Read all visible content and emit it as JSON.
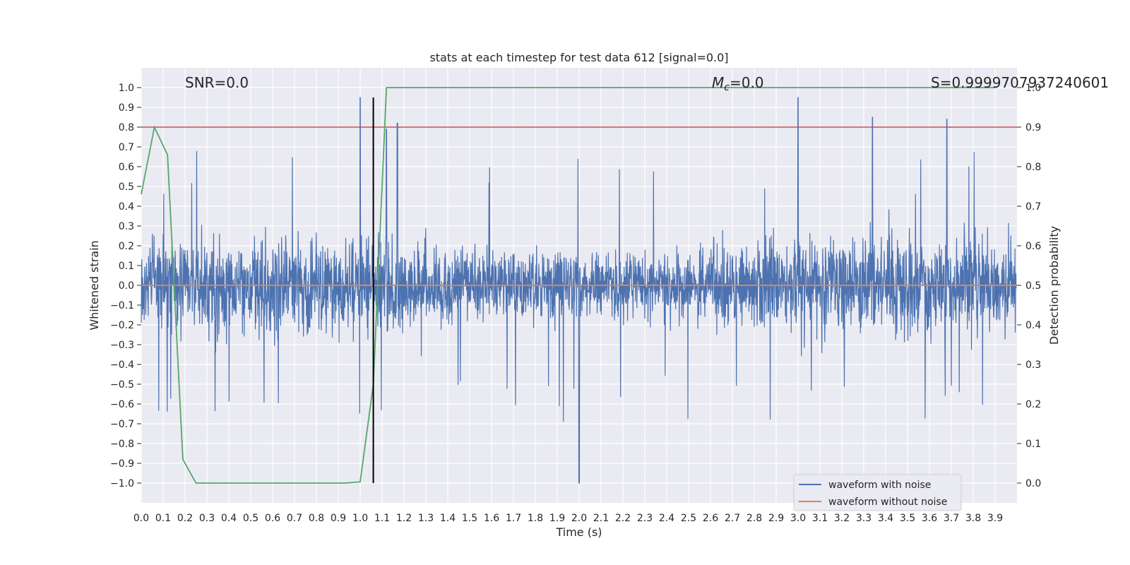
{
  "chart_data": {
    "type": "line",
    "title": "stats at each timestep for test data 612 [signal=0.0]",
    "xlabel": "Time (s)",
    "ylabel": "Whitened strain",
    "y2label": "Detection probability",
    "xlim": [
      0.0,
      4.0
    ],
    "ylim": [
      -1.1,
      1.1
    ],
    "y2lim": [
      -0.05,
      1.05
    ],
    "x_ticks": [
      "0.0",
      "0.1",
      "0.2",
      "0.3",
      "0.4",
      "0.5",
      "0.6",
      "0.7",
      "0.8",
      "0.9",
      "1.0",
      "1.1",
      "1.2",
      "1.3",
      "1.4",
      "1.5",
      "1.6",
      "1.7",
      "1.8",
      "1.9",
      "2.0",
      "2.1",
      "2.2",
      "2.3",
      "2.4",
      "2.5",
      "2.6",
      "2.7",
      "2.8",
      "2.9",
      "3.0",
      "3.1",
      "3.2",
      "3.3",
      "3.4",
      "3.5",
      "3.6",
      "3.7",
      "3.8",
      "3.9"
    ],
    "y_ticks": [
      "1.0",
      "0.9",
      "0.8",
      "0.7",
      "0.6",
      "0.5",
      "0.4",
      "0.3",
      "0.2",
      "0.1",
      "0.0",
      "-0.1",
      "-0.2",
      "-0.3",
      "-0.4",
      "-0.5",
      "-0.6",
      "-0.7",
      "-0.8",
      "-0.9",
      "-1.0"
    ],
    "y2_ticks": [
      "1.0",
      "0.9",
      "0.8",
      "0.7",
      "0.6",
      "0.5",
      "0.4",
      "0.3",
      "0.2",
      "0.1",
      "0.0"
    ],
    "grid": true,
    "legend": {
      "position": "lower-right",
      "entries": [
        {
          "label": "waveform with noise",
          "color": "#4c72b0"
        },
        {
          "label": "waveform without noise",
          "color": "#dd8452"
        }
      ]
    },
    "annotations": {
      "snr": "SNR=0.0",
      "mc_symbol": "M",
      "mc_sub": "c",
      "mc_value": "=0.0",
      "stat": "S=0.9999707937240601"
    },
    "noise_series": {
      "name": "waveform with noise",
      "color": "#4c72b0",
      "x_range": [
        0.0,
        3.996
      ],
      "envelope": "random noise, typical amplitude about ±0.4, peaks near 0.95 at x≈1.0 and x≈3.0, dip to -1.0 at x≈2.0"
    },
    "clean_series": {
      "name": "waveform without noise",
      "color": "#dd8452",
      "x": [
        0.0,
        4.0
      ],
      "y": [
        0.0,
        0.0
      ]
    },
    "probability_series": {
      "color": "#55a868",
      "axis": "right",
      "x": [
        0.0,
        0.06,
        0.12,
        0.19,
        0.25,
        0.3,
        0.5,
        0.7,
        0.93,
        1.0,
        1.06,
        1.12,
        1.5,
        2.0,
        3.0,
        3.9
      ],
      "y": [
        0.73,
        0.9,
        0.83,
        0.06,
        0.0,
        0.0,
        0.0,
        0.0,
        0.0,
        0.003,
        0.25,
        1.0,
        1.0,
        1.0,
        1.0,
        1.0
      ]
    },
    "threshold_line": {
      "axis": "right",
      "y": 0.9,
      "color": "#c44e52"
    },
    "vertical_marker": {
      "x": 1.06,
      "y_range": [
        -1.0,
        0.95
      ],
      "color": "#000000"
    }
  }
}
